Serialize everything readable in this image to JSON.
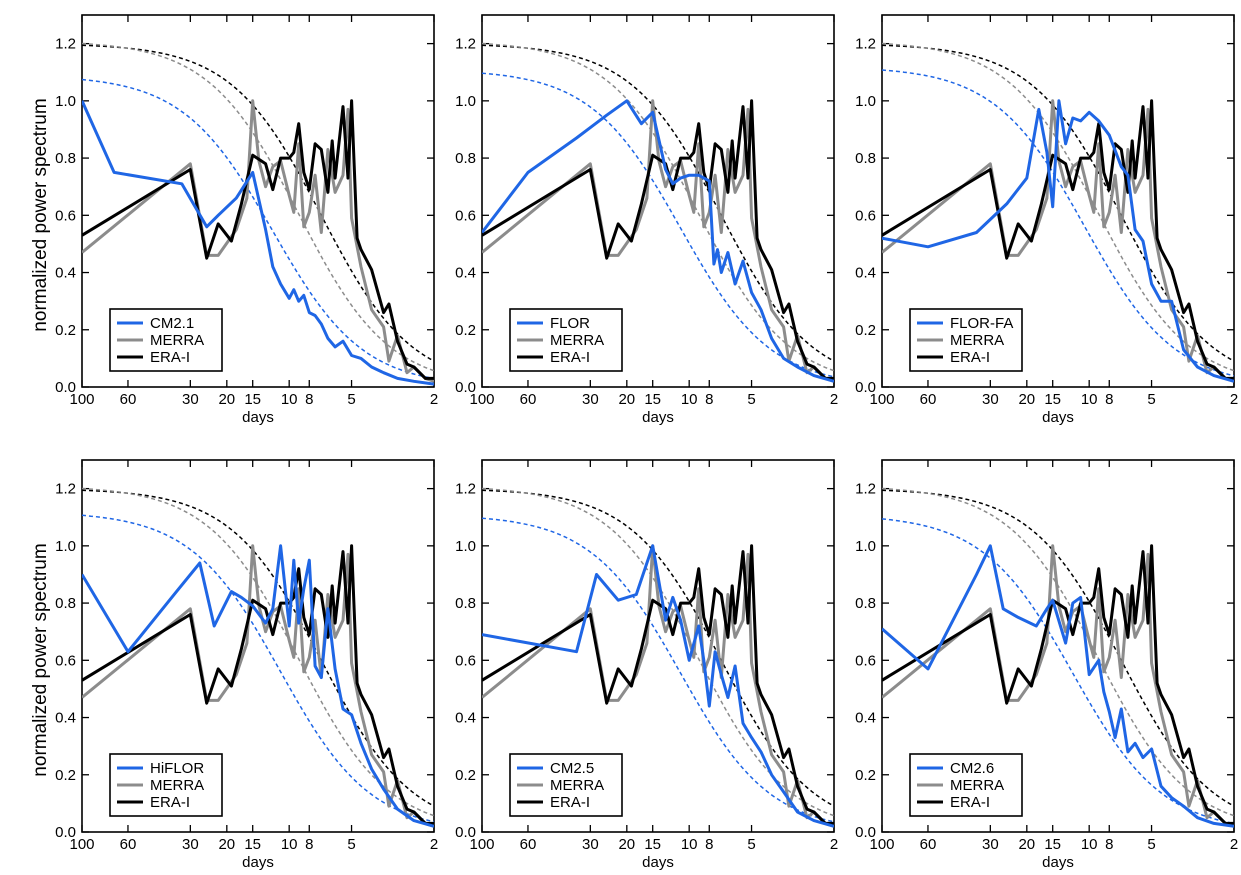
{
  "figure": {
    "ylabel": "normalized power spectrum",
    "colors": {
      "model": "#1f66e5",
      "merra": "#8c8c8c",
      "erai": "#000000"
    }
  },
  "chart_data": [
    {
      "type": "line",
      "xlabel": "days",
      "ylabel": "normalized power spectrum",
      "x_scale": "log-reciprocal (frequency)",
      "xlim": [
        100,
        2
      ],
      "ylim": [
        0,
        1.3
      ],
      "xticks": [
        100,
        60,
        30,
        20,
        15,
        10,
        8,
        5,
        2
      ],
      "yticks": [
        0.0,
        0.2,
        0.4,
        0.6,
        0.8,
        1.0,
        1.2
      ],
      "legend": [
        "CM2.1",
        "MERRA",
        "ERA-I"
      ],
      "legend_position": "bottom-left",
      "model_red_noise": {
        "start": 1.09,
        "half_at": 12
      },
      "series": [
        {
          "name": "CM2.1",
          "color": "#1f66e5",
          "x": [
            100,
            70,
            33,
            25,
            22,
            18,
            15,
            13,
            12,
            11,
            10,
            9.5,
            9,
            8.5,
            8,
            7.5,
            7,
            6.5,
            6,
            5.5,
            5,
            4.5,
            4,
            3.5,
            3,
            2.5,
            2
          ],
          "y": [
            1.0,
            0.75,
            0.71,
            0.56,
            0.6,
            0.66,
            0.75,
            0.55,
            0.42,
            0.36,
            0.31,
            0.34,
            0.3,
            0.32,
            0.26,
            0.25,
            0.22,
            0.17,
            0.14,
            0.16,
            0.11,
            0.1,
            0.07,
            0.05,
            0.03,
            0.02,
            0.01
          ]
        }
      ]
    },
    {
      "type": "line",
      "xlabel": "days",
      "ylabel": "",
      "x_scale": "log-reciprocal (frequency)",
      "xlim": [
        100,
        2
      ],
      "ylim": [
        0,
        1.3
      ],
      "xticks": [
        100,
        60,
        30,
        20,
        15,
        10,
        8,
        5,
        2
      ],
      "yticks": [
        0.0,
        0.2,
        0.4,
        0.6,
        0.8,
        1.0,
        1.2
      ],
      "legend": [
        "FLOR",
        "MERRA",
        "ERA-I"
      ],
      "legend_position": "bottom-left",
      "model_red_noise": {
        "start": 1.11,
        "half_at": 11
      },
      "series": [
        {
          "name": "FLOR",
          "color": "#1f66e5",
          "x": [
            100,
            60,
            35,
            25,
            20,
            17,
            15,
            13,
            12,
            11,
            10,
            9,
            8,
            7.6,
            7.3,
            7,
            6.5,
            6,
            5.5,
            5,
            4.5,
            4,
            3.5,
            3,
            2.5,
            2
          ],
          "y": [
            0.54,
            0.75,
            0.87,
            0.95,
            1.0,
            0.92,
            0.96,
            0.76,
            0.71,
            0.73,
            0.74,
            0.74,
            0.72,
            0.43,
            0.48,
            0.4,
            0.47,
            0.36,
            0.44,
            0.33,
            0.27,
            0.17,
            0.1,
            0.07,
            0.04,
            0.02
          ]
        }
      ]
    },
    {
      "type": "line",
      "xlabel": "days",
      "ylabel": "",
      "x_scale": "log-reciprocal (frequency)",
      "xlim": [
        100,
        2
      ],
      "ylim": [
        0,
        1.3
      ],
      "xticks": [
        100,
        60,
        30,
        20,
        15,
        10,
        8,
        5,
        2
      ],
      "yticks": [
        0.0,
        0.2,
        0.4,
        0.6,
        0.8,
        1.0,
        1.2
      ],
      "legend": [
        "FLOR-FA",
        "MERRA",
        "ERA-I"
      ],
      "legend_position": "bottom-left",
      "model_red_noise": {
        "start": 1.12,
        "half_at": 10.5
      },
      "series": [
        {
          "name": "FLOR-FA",
          "color": "#1f66e5",
          "x": [
            100,
            60,
            35,
            25,
            20,
            17.5,
            16,
            15,
            14,
            13,
            12,
            11,
            10,
            9,
            8,
            7,
            6.5,
            6,
            5.5,
            5,
            4.5,
            4,
            3.5,
            3,
            2.5,
            2
          ],
          "y": [
            0.52,
            0.49,
            0.54,
            0.64,
            0.73,
            0.97,
            0.82,
            0.63,
            1.0,
            0.85,
            0.94,
            0.93,
            0.96,
            0.93,
            0.88,
            0.77,
            0.74,
            0.55,
            0.51,
            0.36,
            0.3,
            0.3,
            0.13,
            0.07,
            0.04,
            0.02
          ]
        }
      ]
    },
    {
      "type": "line",
      "xlabel": "days",
      "ylabel": "normalized power spectrum",
      "x_scale": "log-reciprocal (frequency)",
      "xlim": [
        100,
        2
      ],
      "ylim": [
        0,
        1.3
      ],
      "xticks": [
        100,
        60,
        30,
        20,
        15,
        10,
        8,
        5,
        2
      ],
      "yticks": [
        0.0,
        0.2,
        0.4,
        0.6,
        0.8,
        1.0,
        1.2
      ],
      "legend": [
        "HiFLOR",
        "MERRA",
        "ERA-I"
      ],
      "legend_position": "bottom-left",
      "model_red_noise": {
        "start": 1.12,
        "half_at": 11
      },
      "series": [
        {
          "name": "HiFLOR",
          "color": "#1f66e5",
          "x": [
            100,
            60,
            35,
            27,
            23,
            19,
            17,
            15,
            13,
            12,
            11,
            10,
            9.5,
            9,
            8.5,
            8,
            7.5,
            7,
            6.5,
            6,
            5.5,
            5,
            4.5,
            4,
            3.5,
            3,
            2.5,
            2
          ],
          "y": [
            0.9,
            0.63,
            0.84,
            0.94,
            0.72,
            0.84,
            0.82,
            0.79,
            0.73,
            0.78,
            1.0,
            0.72,
            0.95,
            0.73,
            0.85,
            0.95,
            0.58,
            0.54,
            0.78,
            0.57,
            0.43,
            0.41,
            0.31,
            0.22,
            0.15,
            0.08,
            0.04,
            0.02
          ]
        }
      ]
    },
    {
      "type": "line",
      "xlabel": "days",
      "ylabel": "",
      "x_scale": "log-reciprocal (frequency)",
      "xlim": [
        100,
        2
      ],
      "ylim": [
        0,
        1.3
      ],
      "xticks": [
        100,
        60,
        30,
        20,
        15,
        10,
        8,
        5,
        2
      ],
      "yticks": [
        0.0,
        0.2,
        0.4,
        0.6,
        0.8,
        1.0,
        1.2
      ],
      "legend": [
        "CM2.5",
        "MERRA",
        "ERA-I"
      ],
      "legend_position": "bottom-left",
      "model_red_noise": {
        "start": 1.11,
        "half_at": 11
      },
      "series": [
        {
          "name": "CM2.5",
          "color": "#1f66e5",
          "x": [
            100,
            35,
            28,
            22,
            18,
            15,
            13,
            12,
            11,
            10,
            9,
            8.5,
            8,
            7.5,
            7,
            6.5,
            6,
            5.5,
            5,
            4.5,
            4,
            3.5,
            3,
            2.5,
            2
          ],
          "y": [
            0.69,
            0.63,
            0.9,
            0.81,
            0.83,
            1.0,
            0.74,
            0.82,
            0.74,
            0.6,
            0.72,
            0.6,
            0.44,
            0.63,
            0.55,
            0.47,
            0.58,
            0.38,
            0.33,
            0.28,
            0.2,
            0.14,
            0.07,
            0.04,
            0.02
          ]
        }
      ]
    },
    {
      "type": "line",
      "xlabel": "days",
      "ylabel": "",
      "x_scale": "log-reciprocal (frequency)",
      "xlim": [
        100,
        2
      ],
      "ylim": [
        0,
        1.3
      ],
      "xticks": [
        100,
        60,
        30,
        20,
        15,
        10,
        8,
        5,
        2
      ],
      "yticks": [
        0.0,
        0.2,
        0.4,
        0.6,
        0.8,
        1.0,
        1.2
      ],
      "legend": [
        "CM2.6",
        "MERRA",
        "ERA-I"
      ],
      "legend_position": "bottom-left",
      "model_red_noise": {
        "start": 1.11,
        "half_at": 12
      },
      "series": [
        {
          "name": "CM2.6",
          "color": "#1f66e5",
          "x": [
            100,
            60,
            35,
            30,
            26,
            22,
            18,
            16,
            15,
            13,
            12,
            11,
            10,
            9,
            8.5,
            8,
            7.5,
            7,
            6.5,
            6,
            5.5,
            5,
            4.5,
            4,
            3.5,
            3,
            2.5,
            2
          ],
          "y": [
            0.71,
            0.57,
            0.9,
            1.0,
            0.78,
            0.75,
            0.72,
            0.78,
            0.81,
            0.66,
            0.8,
            0.82,
            0.55,
            0.6,
            0.49,
            0.42,
            0.33,
            0.43,
            0.28,
            0.31,
            0.26,
            0.29,
            0.16,
            0.12,
            0.09,
            0.05,
            0.03,
            0.02
          ]
        }
      ]
    }
  ],
  "reference_series": {
    "MERRA": {
      "name": "MERRA",
      "color": "#8c8c8c",
      "x": [
        100,
        30,
        25,
        22,
        18,
        16,
        15,
        14,
        13,
        12,
        11,
        10,
        9.5,
        9,
        8.5,
        8,
        7.5,
        7,
        6.5,
        6,
        5.5,
        5.2,
        5,
        4.5,
        4,
        3.5,
        3.3,
        3,
        2.7,
        2.5,
        2.2,
        2
      ],
      "y": [
        0.47,
        0.78,
        0.46,
        0.46,
        0.55,
        0.66,
        1.0,
        0.79,
        0.7,
        0.77,
        0.79,
        0.67,
        0.61,
        0.85,
        0.56,
        0.61,
        0.74,
        0.54,
        0.83,
        0.68,
        0.74,
        0.97,
        0.59,
        0.42,
        0.27,
        0.21,
        0.09,
        0.18,
        0.05,
        0.07,
        0.03,
        0.02
      ],
      "red_noise": {
        "start": 1.21,
        "half_at": 9
      }
    },
    "ERA-I": {
      "name": "ERA-I",
      "color": "#000000",
      "x": [
        100,
        30,
        25,
        22,
        19,
        17,
        15,
        13,
        12,
        11,
        10,
        9.5,
        9,
        8.5,
        8,
        7.5,
        7,
        6.5,
        6.2,
        6,
        5.5,
        5.2,
        5,
        4.7,
        4.5,
        4,
        3.5,
        3.3,
        3,
        2.7,
        2.5,
        2.2,
        2
      ],
      "y": [
        0.53,
        0.76,
        0.45,
        0.57,
        0.51,
        0.64,
        0.81,
        0.78,
        0.69,
        0.8,
        0.8,
        0.82,
        0.92,
        0.75,
        0.69,
        0.85,
        0.83,
        0.68,
        0.86,
        0.73,
        0.98,
        0.73,
        1.0,
        0.52,
        0.48,
        0.41,
        0.26,
        0.29,
        0.16,
        0.08,
        0.07,
        0.03,
        0.03
      ],
      "red_noise": {
        "start": 1.2,
        "half_at": 7
      }
    }
  }
}
